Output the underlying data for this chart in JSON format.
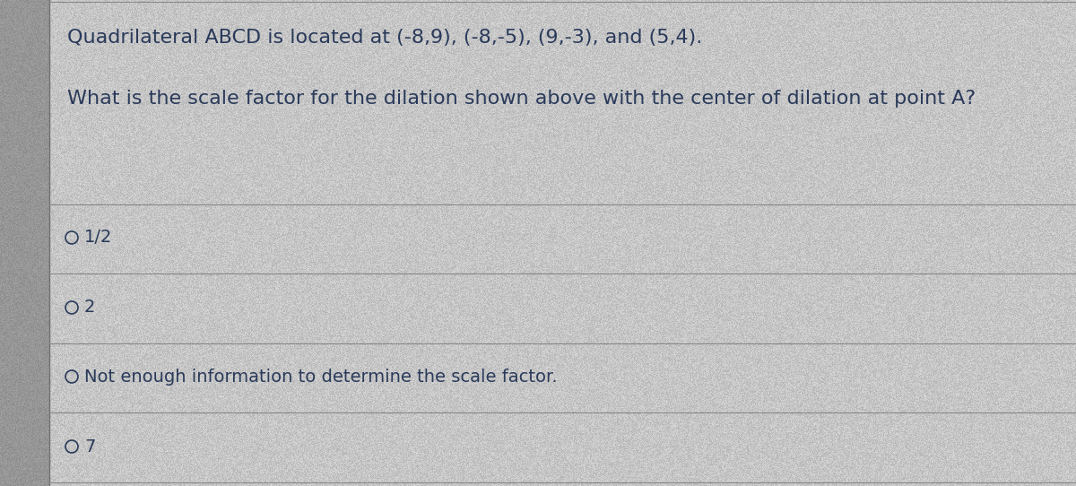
{
  "bg_color": "#b8b8b8",
  "panel_color": "#c8c8c8",
  "left_strip_color": "#909090",
  "text_color": "#2a3a5a",
  "line_color": "#888888",
  "line1": "Quadrilateral ABCD is located at (-8,9), (-8,-5), (9,-3), and (5,4).",
  "line2": "What is the scale factor for the dilation shown above with the center of dilation at point A?",
  "options": [
    "1/2",
    "2",
    "Not enough information to determine the scale factor.",
    "7"
  ],
  "fig_width": 12.0,
  "fig_height": 5.42,
  "dpi": 100,
  "font_size_line1": 16,
  "font_size_line2": 16,
  "font_size_options": 14,
  "noise_seed": 42,
  "noise_intensity": 18
}
